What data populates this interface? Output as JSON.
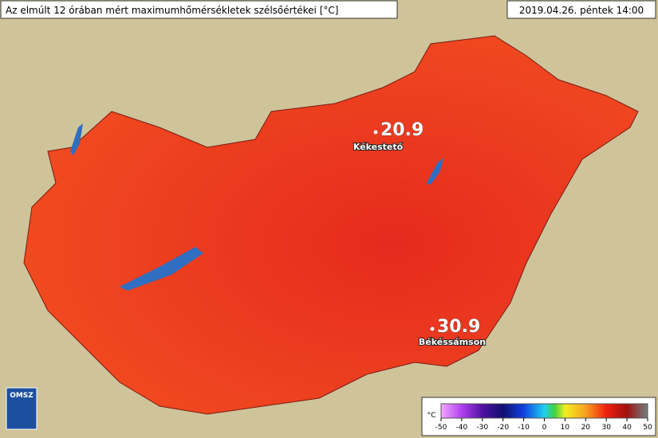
{
  "header": {
    "title": "Az elmúlt 12 órában mért maximumhőmérsékletek szélsőértékei [°C]",
    "timestamp": "2019.04.26. péntek 14:00"
  },
  "stations": [
    {
      "name": "Kékestető",
      "value": 20.9
    },
    {
      "name": "Békéssámson",
      "value": 30.9
    }
  ],
  "legend": {
    "unit": "°C",
    "ticks": [
      -50,
      -40,
      -30,
      -20,
      -10,
      0,
      10,
      20,
      30,
      40,
      50
    ]
  },
  "logo": "OMSZ"
}
